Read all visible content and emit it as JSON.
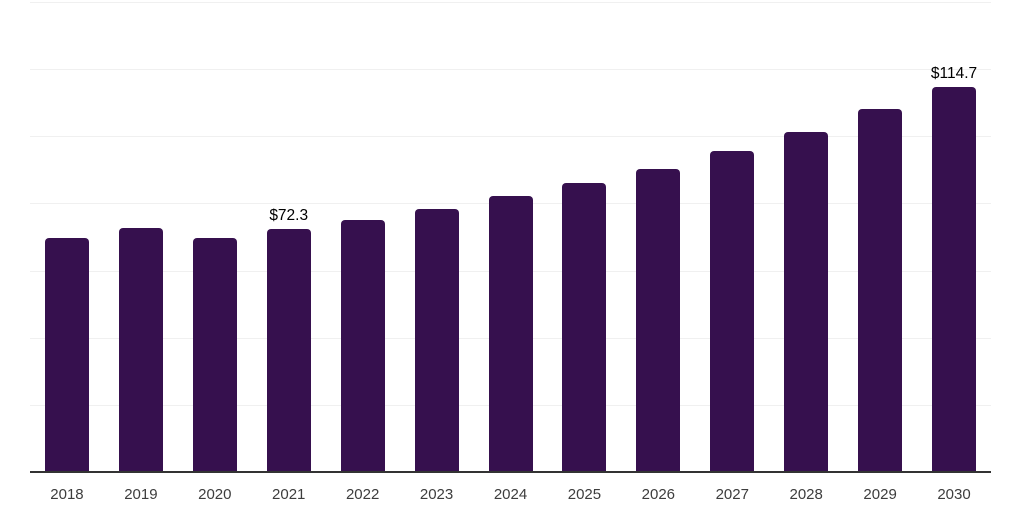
{
  "chart_data": {
    "type": "bar",
    "title": "",
    "xlabel": "",
    "ylabel": "",
    "categories": [
      "2018",
      "2019",
      "2020",
      "2021",
      "2022",
      "2023",
      "2024",
      "2025",
      "2026",
      "2027",
      "2028",
      "2029",
      "2030"
    ],
    "values": [
      69.7,
      72.7,
      69.6,
      72.3,
      75.1,
      78.3,
      82.2,
      86.2,
      90.4,
      95.6,
      101.3,
      108.0,
      114.7
    ],
    "data_labels": {
      "2021": "$72.3",
      "2030": "$114.7"
    },
    "ylim": [
      0,
      140
    ],
    "gridline_step": 20,
    "grid": true,
    "legend": false,
    "colors": {
      "bar": "#36104E",
      "gridline": "#f0f0f0",
      "axis_line": "#333333",
      "tick_label": "#3d3d3d",
      "value_label": "#000000",
      "background": "#ffffff"
    }
  }
}
